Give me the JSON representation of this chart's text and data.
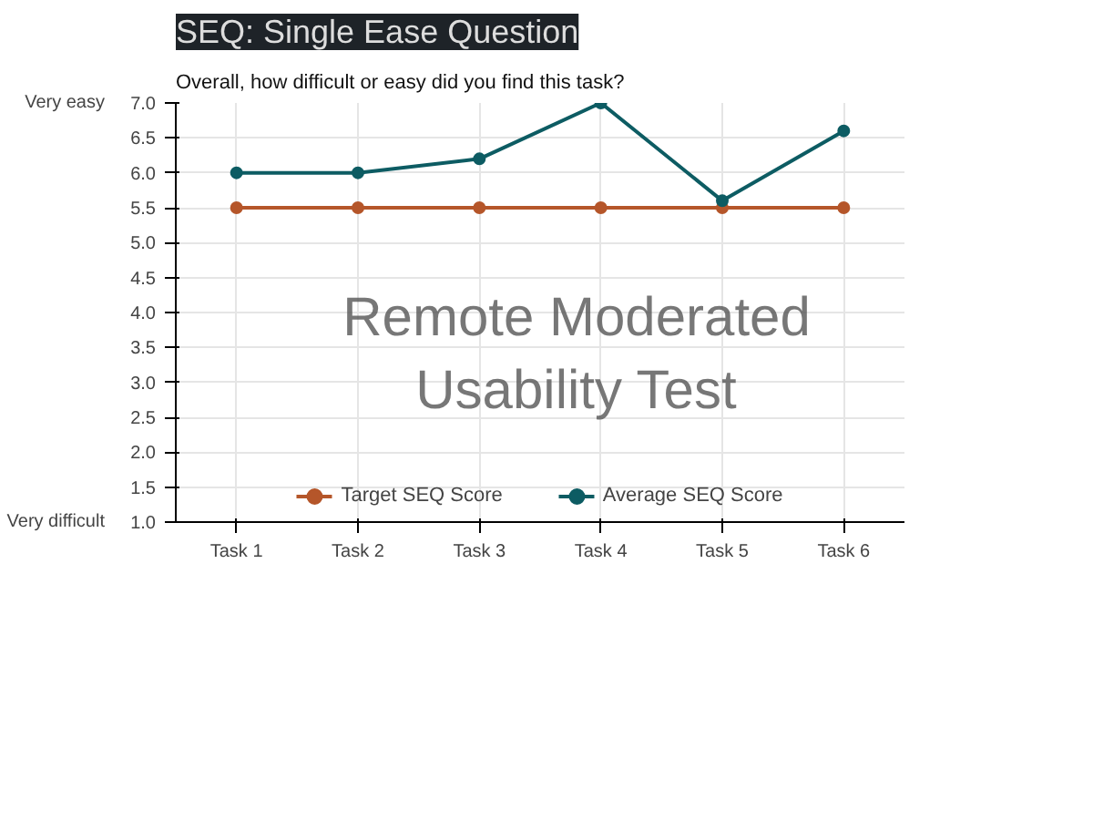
{
  "chart_data": {
    "type": "line",
    "title": "SEQ: Single Ease Question",
    "subtitle": "Overall, how difficult or easy did you find this task?",
    "categories": [
      "Task 1",
      "Task 2",
      "Task 3",
      "Task 4",
      "Task 5",
      "Task 6"
    ],
    "series": [
      {
        "name": "Target SEQ Score",
        "color": "#b5562a",
        "values": [
          5.5,
          5.5,
          5.5,
          5.5,
          5.5,
          5.5
        ]
      },
      {
        "name": "Average SEQ Score",
        "color": "#0d5c63",
        "values": [
          6.0,
          6.0,
          6.2,
          7.0,
          5.6,
          6.6
        ]
      }
    ],
    "ylim": [
      1.0,
      7.0
    ],
    "yticks": [
      {
        "value": 1,
        "label": "1.0"
      },
      {
        "value": 1.5,
        "label": "1.5"
      },
      {
        "value": 2,
        "label": "2.0"
      },
      {
        "value": 2.5,
        "label": "2.5"
      },
      {
        "value": 3,
        "label": "3.0"
      },
      {
        "value": 3.5,
        "label": "3.5"
      },
      {
        "value": 4,
        "label": "4.0"
      },
      {
        "value": 4.5,
        "label": "4.5"
      },
      {
        "value": 5,
        "label": "5.0"
      },
      {
        "value": 5.5,
        "label": "5.5"
      },
      {
        "value": 6,
        "label": "6.0"
      },
      {
        "value": 6.5,
        "label": "6.5"
      },
      {
        "value": 7,
        "label": "7.0"
      }
    ],
    "annotations": [
      "Very easy",
      "Very difficult",
      "Remote Moderated Usability Test"
    ],
    "grid": true,
    "legend": "bottom",
    "marker": "circle",
    "line_style": "solid"
  }
}
